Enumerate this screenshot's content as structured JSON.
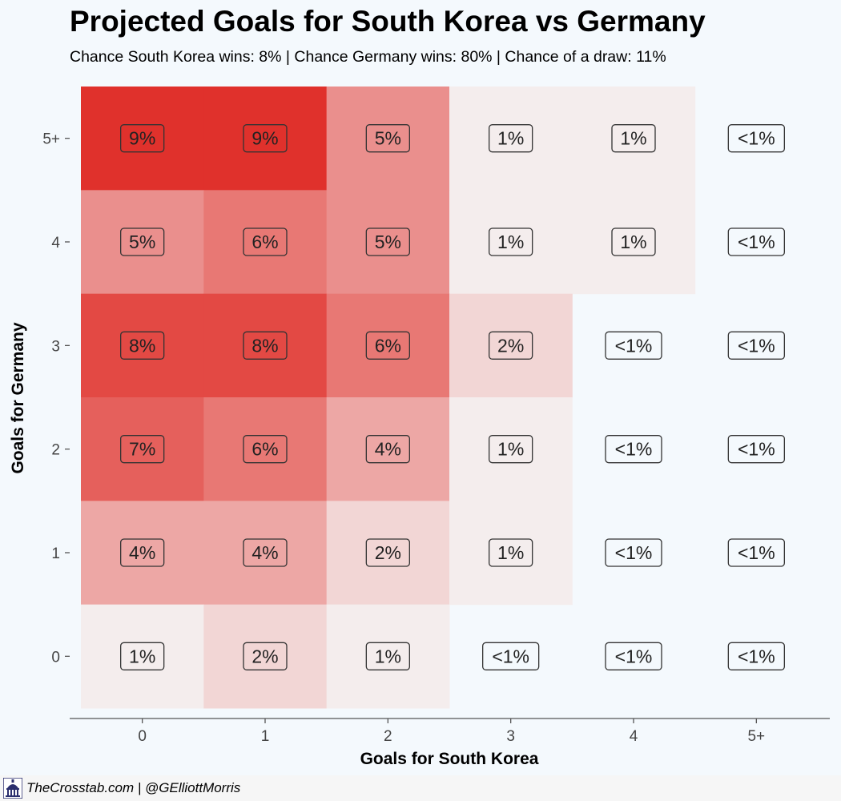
{
  "header": {
    "title": "Projected Goals for South Korea vs Germany",
    "subtitle": "Chance South Korea wins: 8% | Chance Germany wins: 80% | Chance of a draw: 11%"
  },
  "footer": {
    "credit": "TheCrosstab.com | @GElliottMorris",
    "logo_icon": "capitol-dome-icon"
  },
  "chart_data": {
    "type": "heatmap",
    "xlabel": "Goals for South Korea",
    "ylabel": "Goals for Germany",
    "x_categories": [
      "0",
      "1",
      "2",
      "3",
      "4",
      "5+"
    ],
    "y_categories": [
      "0",
      "1",
      "2",
      "3",
      "4",
      "5+"
    ],
    "fill_scale": {
      "low": "#f4eded",
      "high": "#e0312c"
    },
    "cells": [
      {
        "x": "0",
        "y": "5+",
        "value": 9,
        "label": "9%"
      },
      {
        "x": "1",
        "y": "5+",
        "value": 9,
        "label": "9%"
      },
      {
        "x": "2",
        "y": "5+",
        "value": 5,
        "label": "5%"
      },
      {
        "x": "3",
        "y": "5+",
        "value": 1,
        "label": "1%"
      },
      {
        "x": "4",
        "y": "5+",
        "value": 1,
        "label": "1%"
      },
      {
        "x": "5+",
        "y": "5+",
        "value": 0.3,
        "label": "<1%"
      },
      {
        "x": "0",
        "y": "4",
        "value": 5,
        "label": "5%"
      },
      {
        "x": "1",
        "y": "4",
        "value": 6,
        "label": "6%"
      },
      {
        "x": "2",
        "y": "4",
        "value": 5,
        "label": "5%"
      },
      {
        "x": "3",
        "y": "4",
        "value": 1,
        "label": "1%"
      },
      {
        "x": "4",
        "y": "4",
        "value": 1,
        "label": "1%"
      },
      {
        "x": "5+",
        "y": "4",
        "value": 0.3,
        "label": "<1%"
      },
      {
        "x": "0",
        "y": "3",
        "value": 8,
        "label": "8%"
      },
      {
        "x": "1",
        "y": "3",
        "value": 8,
        "label": "8%"
      },
      {
        "x": "2",
        "y": "3",
        "value": 6,
        "label": "6%"
      },
      {
        "x": "3",
        "y": "3",
        "value": 2,
        "label": "2%"
      },
      {
        "x": "4",
        "y": "3",
        "value": 0.3,
        "label": "<1%"
      },
      {
        "x": "5+",
        "y": "3",
        "value": 0.3,
        "label": "<1%"
      },
      {
        "x": "0",
        "y": "2",
        "value": 7,
        "label": "7%"
      },
      {
        "x": "1",
        "y": "2",
        "value": 6,
        "label": "6%"
      },
      {
        "x": "2",
        "y": "2",
        "value": 4,
        "label": "4%"
      },
      {
        "x": "3",
        "y": "2",
        "value": 1,
        "label": "1%"
      },
      {
        "x": "4",
        "y": "2",
        "value": 0.3,
        "label": "<1%"
      },
      {
        "x": "5+",
        "y": "2",
        "value": 0.3,
        "label": "<1%"
      },
      {
        "x": "0",
        "y": "1",
        "value": 4,
        "label": "4%"
      },
      {
        "x": "1",
        "y": "1",
        "value": 4,
        "label": "4%"
      },
      {
        "x": "2",
        "y": "1",
        "value": 2,
        "label": "2%"
      },
      {
        "x": "3",
        "y": "1",
        "value": 1,
        "label": "1%"
      },
      {
        "x": "4",
        "y": "1",
        "value": 0.3,
        "label": "<1%"
      },
      {
        "x": "5+",
        "y": "1",
        "value": 0.3,
        "label": "<1%"
      },
      {
        "x": "0",
        "y": "0",
        "value": 1,
        "label": "1%"
      },
      {
        "x": "1",
        "y": "0",
        "value": 2,
        "label": "2%"
      },
      {
        "x": "2",
        "y": "0",
        "value": 1,
        "label": "1%"
      },
      {
        "x": "3",
        "y": "0",
        "value": 0.3,
        "label": "<1%"
      },
      {
        "x": "4",
        "y": "0",
        "value": 0.3,
        "label": "<1%"
      },
      {
        "x": "5+",
        "y": "0",
        "value": 0.3,
        "label": "<1%"
      }
    ]
  }
}
